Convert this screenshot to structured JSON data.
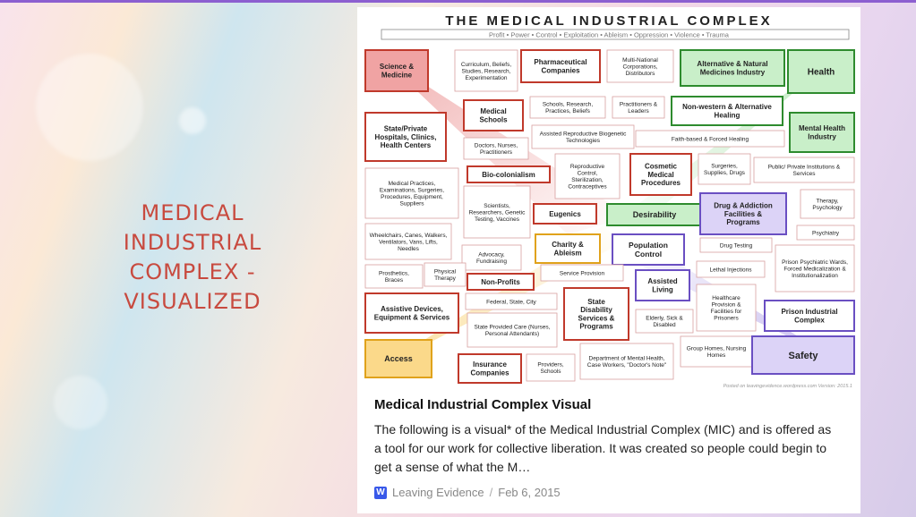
{
  "side_title": "MEDICAL INDUSTRIAL COMPLEX - VISUALIZED",
  "poster": {
    "heading": "THE MEDICAL INDUSTRIAL COMPLEX",
    "subheading": "Profit • Power • Control • Exploitation • Ableism • Oppression • Violence • Trauma",
    "footer": "Posted on leavingevidence.wordpress.com Version: 2015.1",
    "boxes": [
      {
        "text": "Science & Medicine",
        "color": "#c0392b"
      },
      {
        "text": "Curriculum, Beliefs, Studies, Research, Experimentation"
      },
      {
        "text": "Pharmaceutical Companies"
      },
      {
        "text": "Multi-National Corporations, Distributors"
      },
      {
        "text": "Alternative & Natural Medicines Industry",
        "color": "#2e8b2e"
      },
      {
        "text": "Health",
        "color": "#2e8b2e"
      },
      {
        "text": "State/Private Hospitals, Clinics, Health Centers"
      },
      {
        "text": "Medical Schools"
      },
      {
        "text": "Schools, Research, Practices, Beliefs"
      },
      {
        "text": "Practitioners & Leaders"
      },
      {
        "text": "Non-western & Alternative Healing",
        "color": "#2e8b2e"
      },
      {
        "text": "Mental Health Industry",
        "color": "#2e8b2e"
      },
      {
        "text": "Assisted Reproductive Biogenetic Technologies"
      },
      {
        "text": "Faith-based & Forced Healing"
      },
      {
        "text": "Doctors, Nurses, Practitioners"
      },
      {
        "text": "Bio-colonialism"
      },
      {
        "text": "Reproductive Control, Sterilization, Contraceptives"
      },
      {
        "text": "Cosmetic Medical Procedures"
      },
      {
        "text": "Surgeries, Supplies, Drugs"
      },
      {
        "text": "Public/ Private Institutions & Services"
      },
      {
        "text": "Medical Practices, Examinations, Surgeries, Procedures, Equipment, Suppliers"
      },
      {
        "text": "Scientists, Researchers, Genetic Testing, Vaccines"
      },
      {
        "text": "Eugenics",
        "color": "#c0392b"
      },
      {
        "text": "Desirability",
        "color": "#2e8b2e"
      },
      {
        "text": "Drug & Addiction Facilities & Programs",
        "color": "#6a4fc2"
      },
      {
        "text": "Therapy, Psychology"
      },
      {
        "text": "Wheelchairs, Canes, Walkers, Ventilators, Vans, Lifts, Needles"
      },
      {
        "text": "Advocacy, Fundraising"
      },
      {
        "text": "Charity & Ableism",
        "color": "#e0a21b"
      },
      {
        "text": "Population Control",
        "color": "#6a4fc2"
      },
      {
        "text": "Drug Testing"
      },
      {
        "text": "Psychiatry"
      },
      {
        "text": "Prosthetics, Braces"
      },
      {
        "text": "Physical Therapy"
      },
      {
        "text": "Non-Profits"
      },
      {
        "text": "Service Provision"
      },
      {
        "text": "Lethal Injections"
      },
      {
        "text": "Prison Psychiatric Wards, Forced Medicalization & Institutionalization"
      },
      {
        "text": "Assistive Devices, Equipment & Services"
      },
      {
        "text": "Federal, State, City"
      },
      {
        "text": "State Disability Services & Programs"
      },
      {
        "text": "Assisted Living",
        "color": "#6a4fc2"
      },
      {
        "text": "Healthcare Provision & Facilities for Prisoners"
      },
      {
        "text": "Prison Industrial Complex",
        "color": "#6a4fc2"
      },
      {
        "text": "State Provided Care (Nurses, Personal Attendants)"
      },
      {
        "text": "Elderly, Sick & Disabled"
      },
      {
        "text": "Access",
        "color": "#e0a21b"
      },
      {
        "text": "Insurance Companies"
      },
      {
        "text": "Providers, Schools"
      },
      {
        "text": "Department of Mental Health, Case Workers, \"Doctor's Note\""
      },
      {
        "text": "Group Homes, Nursing Homes"
      },
      {
        "text": "Safety",
        "color": "#6a4fc2"
      }
    ]
  },
  "post": {
    "title": "Medical Industrial Complex Visual",
    "excerpt": "The following is a visual* of the Medical Industrial Complex (MIC) and is offered as a tool for our work for collective liberation. It was created so people could begin to get a sense of what the M…",
    "source": "Leaving Evidence",
    "date": "Feb 6, 2015",
    "source_icon": "wordpress-icon"
  }
}
